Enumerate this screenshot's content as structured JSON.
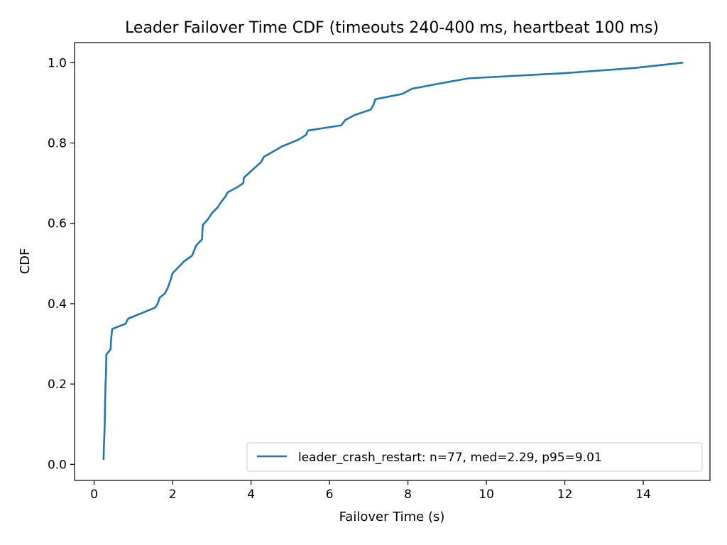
{
  "chart_data": {
    "type": "line",
    "title": "Leader Failover Time CDF (timeouts 240-400 ms, heartbeat 100 ms)",
    "xlabel": "Failover Time (s)",
    "ylabel": "CDF",
    "xlim": [
      -0.5,
      15.7
    ],
    "ylim": [
      -0.04,
      1.05
    ],
    "xticks": [
      0,
      2,
      4,
      6,
      8,
      10,
      12,
      14
    ],
    "yticks": [
      0.0,
      0.2,
      0.4,
      0.6,
      0.8,
      1.0
    ],
    "xtick_labels": [
      "0",
      "2",
      "4",
      "6",
      "8",
      "10",
      "12",
      "14"
    ],
    "ytick_labels": [
      "0.0",
      "0.2",
      "0.4",
      "0.6",
      "0.8",
      "1.0"
    ],
    "grid": false,
    "legend_position": "lower-right",
    "series": [
      {
        "name": "leader_crash_restart: n=77, med=2.29, p95=9.01",
        "color": "#1f77b4",
        "points": [
          [
            0.24,
            0.013
          ],
          [
            0.25,
            0.05
          ],
          [
            0.27,
            0.1
          ],
          [
            0.28,
            0.16
          ],
          [
            0.29,
            0.2
          ],
          [
            0.3,
            0.22
          ],
          [
            0.31,
            0.273
          ],
          [
            0.42,
            0.287
          ],
          [
            0.43,
            0.31
          ],
          [
            0.46,
            0.337
          ],
          [
            0.8,
            0.35
          ],
          [
            0.87,
            0.363
          ],
          [
            1.2,
            0.376
          ],
          [
            1.55,
            0.39
          ],
          [
            1.62,
            0.4
          ],
          [
            1.67,
            0.415
          ],
          [
            1.8,
            0.425
          ],
          [
            1.88,
            0.44
          ],
          [
            1.95,
            0.46
          ],
          [
            2.0,
            0.476
          ],
          [
            2.1,
            0.486
          ],
          [
            2.3,
            0.506
          ],
          [
            2.5,
            0.52
          ],
          [
            2.6,
            0.545
          ],
          [
            2.75,
            0.56
          ],
          [
            2.77,
            0.596
          ],
          [
            2.9,
            0.61
          ],
          [
            3.0,
            0.625
          ],
          [
            3.15,
            0.64
          ],
          [
            3.25,
            0.655
          ],
          [
            3.35,
            0.667
          ],
          [
            3.4,
            0.677
          ],
          [
            3.65,
            0.69
          ],
          [
            3.8,
            0.7
          ],
          [
            3.82,
            0.714
          ],
          [
            4.0,
            0.73
          ],
          [
            4.25,
            0.752
          ],
          [
            4.33,
            0.766
          ],
          [
            4.5,
            0.775
          ],
          [
            4.8,
            0.792
          ],
          [
            5.2,
            0.808
          ],
          [
            5.4,
            0.82
          ],
          [
            5.45,
            0.831
          ],
          [
            6.3,
            0.844
          ],
          [
            6.4,
            0.857
          ],
          [
            6.65,
            0.87
          ],
          [
            7.05,
            0.883
          ],
          [
            7.12,
            0.895
          ],
          [
            7.17,
            0.909
          ],
          [
            7.85,
            0.922
          ],
          [
            8.1,
            0.935
          ],
          [
            8.8,
            0.948
          ],
          [
            9.55,
            0.961
          ],
          [
            12.0,
            0.974
          ],
          [
            13.8,
            0.987
          ],
          [
            15.0,
            1.0
          ]
        ]
      }
    ]
  }
}
